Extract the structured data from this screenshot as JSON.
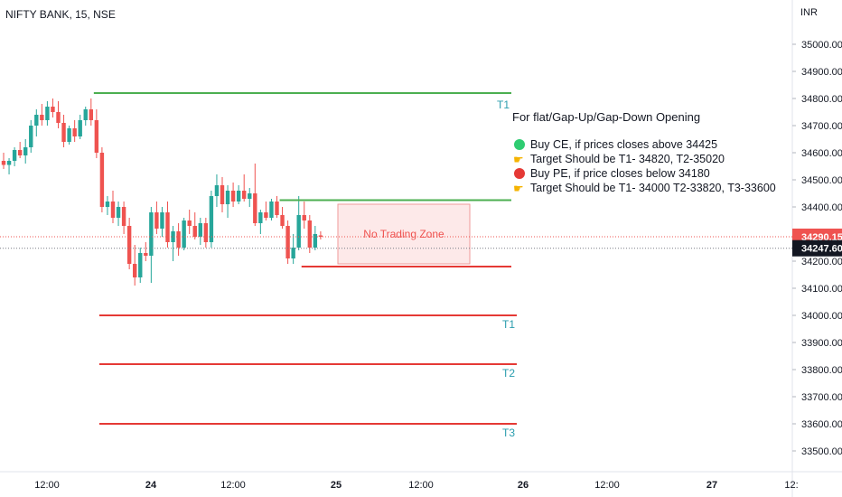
{
  "header": {
    "symbol_title": "NIFTY BANK, 15, NSE",
    "currency": "INR"
  },
  "colors": {
    "up": "#26a69a",
    "down": "#ef5350",
    "target_up": "#4caf50",
    "target_down": "#e53935",
    "zone_fill": "#fde9e9",
    "zone_border": "#ef9a9a",
    "label_teal": "#2a9dae",
    "current_price_bg": "#ef5350",
    "prev_price_bg": "#131722"
  },
  "chart_data": {
    "type": "candlestick",
    "y_axis": {
      "ticks": [
        "35000.00",
        "34900.00",
        "34800.00",
        "34700.00",
        "34600.00",
        "34500.00",
        "34400.00",
        "34300.00",
        "34200.00",
        "34100.00",
        "34000.00",
        "33900.00",
        "33800.00",
        "33700.00",
        "33600.00",
        "33500.00"
      ],
      "range": [
        33460,
        35060
      ],
      "price_labels": [
        {
          "value": 34290.15,
          "text": "34290.15",
          "style": "current"
        },
        {
          "value": 34247.6,
          "text": "34247.60",
          "style": "previous"
        }
      ]
    },
    "x_axis": {
      "labels": [
        "12:00",
        "24",
        "12:00",
        "25",
        "12:00",
        "26",
        "12:00",
        "27",
        "12:"
      ]
    },
    "candles": [
      {
        "o": 34570,
        "h": 34600,
        "l": 34540,
        "c": 34555
      },
      {
        "o": 34555,
        "h": 34580,
        "l": 34520,
        "c": 34570
      },
      {
        "o": 34570,
        "h": 34620,
        "l": 34550,
        "c": 34610
      },
      {
        "o": 34610,
        "h": 34640,
        "l": 34580,
        "c": 34590
      },
      {
        "o": 34590,
        "h": 34650,
        "l": 34560,
        "c": 34620
      },
      {
        "o": 34620,
        "h": 34720,
        "l": 34600,
        "c": 34700
      },
      {
        "o": 34700,
        "h": 34760,
        "l": 34660,
        "c": 34740
      },
      {
        "o": 34740,
        "h": 34780,
        "l": 34700,
        "c": 34720
      },
      {
        "o": 34720,
        "h": 34790,
        "l": 34700,
        "c": 34770
      },
      {
        "o": 34770,
        "h": 34800,
        "l": 34730,
        "c": 34750
      },
      {
        "o": 34750,
        "h": 34790,
        "l": 34690,
        "c": 34710
      },
      {
        "o": 34710,
        "h": 34740,
        "l": 34620,
        "c": 34640
      },
      {
        "o": 34640,
        "h": 34700,
        "l": 34630,
        "c": 34690
      },
      {
        "o": 34690,
        "h": 34720,
        "l": 34640,
        "c": 34660
      },
      {
        "o": 34660,
        "h": 34740,
        "l": 34650,
        "c": 34720
      },
      {
        "o": 34720,
        "h": 34770,
        "l": 34700,
        "c": 34760
      },
      {
        "o": 34760,
        "h": 34800,
        "l": 34700,
        "c": 34720
      },
      {
        "o": 34720,
        "h": 34760,
        "l": 34580,
        "c": 34600
      },
      {
        "o": 34600,
        "h": 34620,
        "l": 34380,
        "c": 34400
      },
      {
        "o": 34400,
        "h": 34440,
        "l": 34370,
        "c": 34420
      },
      {
        "o": 34420,
        "h": 34460,
        "l": 34340,
        "c": 34360
      },
      {
        "o": 34360,
        "h": 34420,
        "l": 34330,
        "c": 34400
      },
      {
        "o": 34400,
        "h": 34420,
        "l": 34300,
        "c": 34330
      },
      {
        "o": 34330,
        "h": 34360,
        "l": 34170,
        "c": 34190
      },
      {
        "o": 34190,
        "h": 34260,
        "l": 34110,
        "c": 34140
      },
      {
        "o": 34140,
        "h": 34250,
        "l": 34120,
        "c": 34230
      },
      {
        "o": 34230,
        "h": 34270,
        "l": 34200,
        "c": 34220
      },
      {
        "o": 34220,
        "h": 34400,
        "l": 34120,
        "c": 34380
      },
      {
        "o": 34380,
        "h": 34420,
        "l": 34300,
        "c": 34320
      },
      {
        "o": 34320,
        "h": 34400,
        "l": 34290,
        "c": 34380
      },
      {
        "o": 34380,
        "h": 34420,
        "l": 34250,
        "c": 34270
      },
      {
        "o": 34270,
        "h": 34330,
        "l": 34200,
        "c": 34310
      },
      {
        "o": 34310,
        "h": 34340,
        "l": 34220,
        "c": 34250
      },
      {
        "o": 34250,
        "h": 34360,
        "l": 34240,
        "c": 34350
      },
      {
        "o": 34350,
        "h": 34390,
        "l": 34300,
        "c": 34330
      },
      {
        "o": 34330,
        "h": 34380,
        "l": 34280,
        "c": 34290
      },
      {
        "o": 34290,
        "h": 34360,
        "l": 34260,
        "c": 34340
      },
      {
        "o": 34340,
        "h": 34360,
        "l": 34250,
        "c": 34270
      },
      {
        "o": 34270,
        "h": 34460,
        "l": 34250,
        "c": 34440
      },
      {
        "o": 34440,
        "h": 34520,
        "l": 34400,
        "c": 34480
      },
      {
        "o": 34480,
        "h": 34510,
        "l": 34380,
        "c": 34410
      },
      {
        "o": 34410,
        "h": 34480,
        "l": 34360,
        "c": 34460
      },
      {
        "o": 34460,
        "h": 34490,
        "l": 34400,
        "c": 34420
      },
      {
        "o": 34420,
        "h": 34480,
        "l": 34410,
        "c": 34460
      },
      {
        "o": 34460,
        "h": 34520,
        "l": 34420,
        "c": 34430
      },
      {
        "o": 34430,
        "h": 34470,
        "l": 34400,
        "c": 34450
      },
      {
        "o": 34450,
        "h": 34560,
        "l": 34330,
        "c": 34340
      },
      {
        "o": 34340,
        "h": 34390,
        "l": 34300,
        "c": 34380
      },
      {
        "o": 34380,
        "h": 34420,
        "l": 34350,
        "c": 34360
      },
      {
        "o": 34360,
        "h": 34430,
        "l": 34350,
        "c": 34420
      },
      {
        "o": 34420,
        "h": 34440,
        "l": 34360,
        "c": 34370
      },
      {
        "o": 34370,
        "h": 34400,
        "l": 34320,
        "c": 34330
      },
      {
        "o": 34330,
        "h": 34350,
        "l": 34190,
        "c": 34210
      },
      {
        "o": 34210,
        "h": 34300,
        "l": 34190,
        "c": 34250
      },
      {
        "o": 34250,
        "h": 34440,
        "l": 34240,
        "c": 34370
      },
      {
        "o": 34370,
        "h": 34420,
        "l": 34320,
        "c": 34350
      },
      {
        "o": 34350,
        "h": 34370,
        "l": 34230,
        "c": 34250
      },
      {
        "o": 34250,
        "h": 34330,
        "l": 34240,
        "c": 34300
      },
      {
        "o": 34295,
        "h": 34310,
        "l": 34280,
        "c": 34290
      }
    ],
    "levels": [
      {
        "label": "T1",
        "value": 34820,
        "color": "target_up",
        "x_start_candle": 17
      },
      {
        "label": "",
        "value": 34425,
        "color": "target_up",
        "x_start_candle": 51
      },
      {
        "label": "",
        "value": 34180,
        "color": "target_down",
        "x_start_candle": 55
      },
      {
        "label": "T1",
        "value": 34000,
        "color": "target_down",
        "x_start_candle": 18
      },
      {
        "label": "T2",
        "value": 33820,
        "color": "target_down",
        "x_start_candle": 18
      },
      {
        "label": "T3",
        "value": 33600,
        "color": "target_down",
        "x_start_candle": 18
      }
    ],
    "zone": {
      "label": "No Trading Zone",
      "top_value": 34410,
      "bottom_value": 34190
    },
    "annotation": {
      "heading": "For flat/Gap-Up/Gap-Down Opening",
      "items": [
        {
          "marker": "green-circle",
          "text": "Buy CE, if prices closes above 34425"
        },
        {
          "marker": "pointing-hand",
          "text": "Target Should be T1- 34820, T2-35020"
        },
        {
          "marker": "red-circle",
          "text": "Buy PE, if price closes below 34180"
        },
        {
          "marker": "pointing-hand",
          "text": "Target Should be T1- 34000 T2-33820, T3-33600"
        }
      ]
    }
  }
}
